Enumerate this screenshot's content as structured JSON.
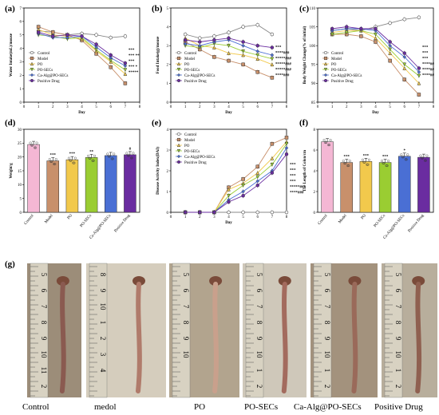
{
  "groups": [
    "Control",
    "Model",
    "PO",
    "PO-SECs",
    "Ca-Alg@PO-SECs",
    "Positive Drug"
  ],
  "colors": [
    "#ffffff",
    "#c8906b",
    "#f2c94c",
    "#9acd32",
    "#4a6fd4",
    "#6a2ca0"
  ],
  "chart_data": [
    {
      "panel": "(a)",
      "type": "line",
      "xlabel": "Day",
      "ylabel": "Water Intake(mL)/mouse",
      "xlim": [
        0,
        8
      ],
      "ylim": [
        0,
        7
      ],
      "xticks": [
        "0",
        "1",
        "2",
        "3",
        "4",
        "5",
        "6",
        "7",
        "8"
      ],
      "yticks": [
        "0",
        "1",
        "2",
        "3",
        "4",
        "5",
        "6",
        "7"
      ],
      "x": [
        1,
        2,
        3,
        4,
        5,
        6,
        7
      ],
      "legend": [
        "Control",
        "Model",
        "PO",
        "PO-SECs",
        "Ca-Alg@PO-SECs",
        "Positive Drug"
      ],
      "legend_position": "lower-left",
      "series": [
        {
          "name": "Control",
          "values": [
            5.3,
            5.2,
            5.0,
            5.1,
            5.0,
            4.8,
            4.9
          ]
        },
        {
          "name": "Model",
          "values": [
            5.6,
            5.2,
            5.0,
            4.6,
            3.6,
            2.6,
            1.4
          ]
        },
        {
          "name": "PO",
          "values": [
            5.4,
            5.0,
            4.9,
            4.7,
            3.8,
            3.0,
            2.1
          ]
        },
        {
          "name": "PO-SECs",
          "values": [
            5.0,
            4.9,
            4.7,
            4.8,
            3.9,
            3.1,
            2.4
          ]
        },
        {
          "name": "Ca-Alg@PO-SECs",
          "values": [
            5.1,
            4.8,
            4.8,
            4.9,
            4.1,
            3.3,
            2.7
          ]
        },
        {
          "name": "Positive Drug",
          "values": [
            5.2,
            4.9,
            5.0,
            4.9,
            4.3,
            3.5,
            2.9
          ]
        }
      ],
      "annotations": [
        "***",
        "*** **",
        "***",
        "*** *",
        "*****"
      ]
    },
    {
      "panel": "(b)",
      "type": "line",
      "xlabel": "Day",
      "ylabel": "Food Intake(g)/mouse",
      "xlim": [
        0,
        8
      ],
      "ylim": [
        0,
        5
      ],
      "xticks": [
        "0",
        "1",
        "2",
        "3",
        "4",
        "5",
        "6",
        "7",
        "8"
      ],
      "yticks": [
        "0",
        "1",
        "2",
        "3",
        "4",
        "5"
      ],
      "x": [
        1,
        2,
        3,
        4,
        5,
        6,
        7
      ],
      "legend": [
        "Control",
        "Model",
        "PO",
        "PO-SECs",
        "Ca-Alg@PO-SECs",
        "Positive Drug"
      ],
      "legend_position": "lower-left",
      "series": [
        {
          "name": "Control",
          "values": [
            3.6,
            3.4,
            3.5,
            3.7,
            4.0,
            4.1,
            3.6
          ]
        },
        {
          "name": "Model",
          "values": [
            3.2,
            2.8,
            2.4,
            2.2,
            2.0,
            1.6,
            1.3
          ]
        },
        {
          "name": "PO",
          "values": [
            3.4,
            3.0,
            2.9,
            2.6,
            2.5,
            2.3,
            2.0
          ]
        },
        {
          "name": "PO-SECs",
          "values": [
            3.0,
            2.9,
            3.1,
            3.0,
            2.7,
            2.5,
            2.3
          ]
        },
        {
          "name": "Ca-Alg@PO-SECs",
          "values": [
            3.1,
            3.0,
            3.2,
            3.3,
            3.0,
            2.7,
            2.5
          ]
        },
        {
          "name": "Positive Drug",
          "values": [
            3.3,
            3.2,
            3.3,
            3.4,
            3.2,
            3.0,
            2.9
          ]
        }
      ],
      "annotations": [
        "***",
        "****###",
        "*****###",
        "*****###",
        "*****###",
        "****###"
      ]
    },
    {
      "panel": "(c)",
      "type": "line",
      "xlabel": "Day",
      "ylabel": "Body Weight Change(% of initial)",
      "xlim": [
        0,
        8
      ],
      "ylim": [
        85,
        110
      ],
      "xticks": [
        "0",
        "1",
        "2",
        "3",
        "4",
        "5",
        "6",
        "7",
        "8"
      ],
      "yticks": [
        "85",
        "90",
        "95",
        "100",
        "105",
        "110"
      ],
      "x": [
        1,
        2,
        3,
        4,
        5,
        6,
        7
      ],
      "legend": [
        "Control",
        "Model",
        "PO",
        "PO-SECs",
        "Ca-Alg@PO-SECs",
        "Positive Drug"
      ],
      "legend_position": "lower-left",
      "series": [
        {
          "name": "Control",
          "values": [
            104,
            104.5,
            104,
            105,
            106,
            107,
            107.5
          ]
        },
        {
          "name": "Model",
          "values": [
            103,
            103,
            102.5,
            101,
            96,
            91,
            87
          ]
        },
        {
          "name": "PO",
          "values": [
            103.5,
            104,
            104,
            102,
            98,
            94,
            90
          ]
        },
        {
          "name": "PO-SECs",
          "values": [
            103,
            103.5,
            104,
            103,
            99,
            95,
            92
          ]
        },
        {
          "name": "Ca-Alg@PO-SECs",
          "values": [
            104,
            104.5,
            104.5,
            104,
            100,
            97,
            93
          ]
        },
        {
          "name": "Positive Drug",
          "values": [
            104.5,
            105,
            104.5,
            104.5,
            101,
            98,
            94
          ]
        }
      ],
      "annotations": [
        "***",
        "***",
        "***",
        "****##",
        "****##",
        "****##"
      ]
    },
    {
      "panel": "(d)",
      "type": "bar",
      "ylabel": "Weight/g",
      "ylim": [
        0,
        30
      ],
      "yticks": [
        "0",
        "5",
        "10",
        "15",
        "20",
        "25",
        "30"
      ],
      "categories": [
        "Control",
        "Model",
        "PO",
        "PO-SECs",
        "Ca-Alg@PO-SECs",
        "Positive Drug"
      ],
      "values": [
        24.5,
        18.6,
        19.0,
        19.8,
        20.5,
        20.8
      ],
      "annotations": [
        "",
        "***",
        "***",
        "**",
        "",
        "#"
      ]
    },
    {
      "panel": "(e)",
      "type": "line",
      "xlabel": "Day",
      "ylabel": "Disease Activity Index(DAI)",
      "xlim": [
        0,
        8
      ],
      "ylim": [
        0,
        4
      ],
      "xticks": [
        "0",
        "1",
        "2",
        "3",
        "4",
        "5",
        "6",
        "7",
        "8"
      ],
      "yticks": [
        "0",
        "1",
        "2",
        "3",
        "4"
      ],
      "x": [
        1,
        2,
        3,
        4,
        5,
        6,
        7,
        8
      ],
      "legend": [
        "Control",
        "Model",
        "PO",
        "PO-SECs",
        "Ca-Alg@PO-SECs",
        "Positive Drug"
      ],
      "legend_position": "upper-left",
      "series": [
        {
          "name": "Control",
          "values": [
            0,
            0,
            0,
            0,
            0,
            0,
            0,
            0
          ]
        },
        {
          "name": "Model",
          "values": [
            0,
            0,
            0,
            1.2,
            1.6,
            2.2,
            3.3,
            3.6
          ]
        },
        {
          "name": "PO",
          "values": [
            0,
            0,
            0,
            1.1,
            1.4,
            1.9,
            2.6,
            3.4
          ]
        },
        {
          "name": "PO-SECs",
          "values": [
            0,
            0,
            0,
            0.8,
            1.3,
            1.7,
            2.3,
            3.3
          ]
        },
        {
          "name": "Ca-Alg@PO-SECs",
          "values": [
            0,
            0,
            0,
            0.6,
            1.0,
            1.5,
            2.0,
            3.1
          ]
        },
        {
          "name": "Positive Drug",
          "values": [
            0,
            0,
            0,
            0.5,
            0.8,
            1.3,
            1.9,
            2.8
          ]
        }
      ],
      "annotations": [
        "***",
        "***",
        "***",
        "***",
        "*****##",
        "****###"
      ]
    },
    {
      "panel": "(f)",
      "type": "bar",
      "ylabel": "The Length of Colon/cm",
      "ylim": [
        0,
        8
      ],
      "yticks": [
        "0",
        "2",
        "4",
        "6",
        "8"
      ],
      "categories": [
        "Control",
        "Model",
        "PO",
        "PO-SECs",
        "Ca-Alg@PO-SECs",
        "Positive Drug"
      ],
      "values": [
        6.8,
        4.8,
        4.9,
        4.8,
        5.4,
        5.3
      ],
      "annotations": [
        "",
        "***",
        "***",
        "***",
        "*",
        ""
      ]
    }
  ],
  "photo_panel": {
    "label": "(g)",
    "captions": [
      "Control",
      "medol",
      "PO",
      "PO-SECs",
      "Ca-Alg@PO-SECs",
      "Positive Drug"
    ],
    "ruler_numbers": [
      [
        "5",
        "6",
        "7",
        "8",
        "9",
        "10",
        "11",
        "2"
      ],
      [
        "8",
        "9",
        "10",
        "1",
        "2",
        "3",
        "4"
      ],
      [
        "5",
        "6",
        "7",
        "8",
        "9",
        "10"
      ],
      [
        "5",
        "6",
        "7",
        "8",
        "9",
        "10",
        "1",
        "2"
      ],
      [
        "5",
        "6",
        "7",
        "8",
        "9",
        "10",
        "1",
        "2"
      ],
      [
        "5",
        "6",
        "7",
        "8",
        "9",
        "10",
        "1",
        "2"
      ]
    ]
  }
}
